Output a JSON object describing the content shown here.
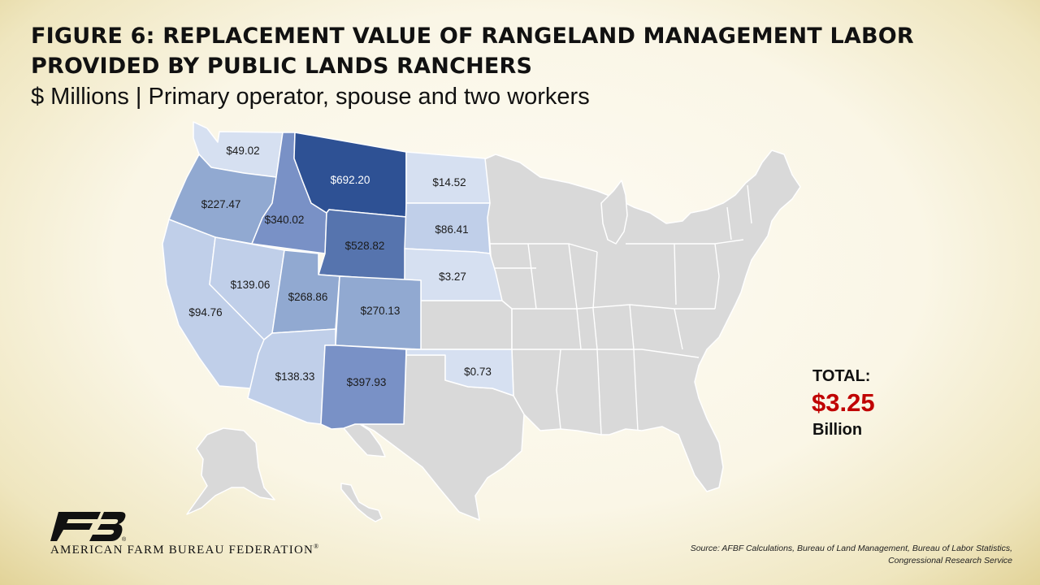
{
  "title_line1": "FIGURE 6: REPLACEMENT VALUE OF RANGELAND MANAGEMENT LABOR",
  "title_line2": "PROVIDED BY PUBLIC LANDS RANCHERS",
  "subtitle": "$ Millions | Primary operator, spouse and two workers",
  "colors": {
    "tier_lightest": "#d6e0f1",
    "tier_light": "#c0cfe9",
    "tier_mid": "#91a9d1",
    "tier_strong": "#7991c6",
    "tier_dark": "#5674ae",
    "tier_darkest": "#2e5194",
    "no_data": "#d9d9d9",
    "total_value": "#c00000",
    "logo": "#111111"
  },
  "states": [
    {
      "id": "WA",
      "label": "$49.02",
      "value": 49.02
    },
    {
      "id": "OR",
      "label": "$227.47",
      "value": 227.47
    },
    {
      "id": "ID",
      "label": "$340.02",
      "value": 340.02
    },
    {
      "id": "MT",
      "label": "$692.20",
      "value": 692.2
    },
    {
      "id": "WY",
      "label": "$528.82",
      "value": 528.82
    },
    {
      "id": "ND",
      "label": "$14.52",
      "value": 14.52
    },
    {
      "id": "SD",
      "label": "$86.41",
      "value": 86.41
    },
    {
      "id": "NE",
      "label": "$3.27",
      "value": 3.27
    },
    {
      "id": "CA",
      "label": "$94.76",
      "value": 94.76
    },
    {
      "id": "NV",
      "label": "$139.06",
      "value": 139.06
    },
    {
      "id": "UT",
      "label": "$268.86",
      "value": 268.86
    },
    {
      "id": "CO",
      "label": "$270.13",
      "value": 270.13
    },
    {
      "id": "AZ",
      "label": "$138.33",
      "value": 138.33
    },
    {
      "id": "NM",
      "label": "$397.93",
      "value": 397.93
    },
    {
      "id": "OK",
      "label": "$0.73",
      "value": 0.73
    }
  ],
  "total": {
    "label": "TOTAL:",
    "value": "$3.25",
    "unit": "Billion"
  },
  "source_line1": "Source: AFBF Calculations, Bureau of Land Management, Bureau of Labor Statistics,",
  "source_line2": "Congressional Research Service",
  "organization": "AMERICAN FARM BUREAU FEDERATION",
  "organization_mark": "®"
}
